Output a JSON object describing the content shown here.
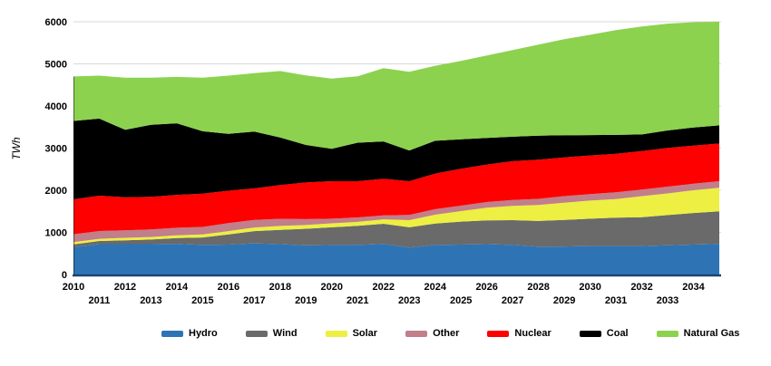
{
  "chart": {
    "background": "#FFFFFF",
    "gridline_color": "#D9D9D9",
    "axis_line_color": "#1B4470",
    "text_color": "#000000"
  },
  "chart_data": {
    "type": "area",
    "stacked": true,
    "title": "",
    "xlabel": "",
    "ylabel": "TWh",
    "ylim": [
      0,
      6000
    ],
    "grid": "horizontal",
    "legend_position": "bottom",
    "y_ticks": [
      "0",
      "1000",
      "2000",
      "3000",
      "4000",
      "5000",
      "6000"
    ],
    "x": [
      2010,
      2011,
      2012,
      2013,
      2014,
      2015,
      2016,
      2017,
      2018,
      2019,
      2020,
      2021,
      2022,
      2023,
      2024,
      2025,
      2026,
      2027,
      2028,
      2029,
      2030,
      2031,
      2032,
      2033,
      2034,
      2035
    ],
    "x_ticks_row1": [
      "2010",
      "2012",
      "2014",
      "2016",
      "2018",
      "2020",
      "2022",
      "2024",
      "2026",
      "2028",
      "2030",
      "2032",
      "2034"
    ],
    "x_ticks_row2": [
      "2011",
      "2013",
      "2015",
      "2017",
      "2019",
      "2021",
      "2023",
      "2025",
      "2027",
      "2029",
      "2031",
      "2033"
    ],
    "series": [
      {
        "name": "Hydro",
        "color": "#2E74B5",
        "values": [
          650,
          720,
          720,
          720,
          730,
          700,
          710,
          740,
          720,
          690,
          700,
          700,
          725,
          640,
          700,
          710,
          720,
          700,
          660,
          665,
          675,
          675,
          675,
          695,
          710,
          725
        ]
      },
      {
        "name": "Wind",
        "color": "#6A6A6A",
        "values": [
          65,
          75,
          90,
          110,
          135,
          180,
          240,
          290,
          340,
          395,
          420,
          455,
          480,
          480,
          510,
          545,
          565,
          590,
          610,
          630,
          650,
          675,
          685,
          715,
          750,
          775
        ]
      },
      {
        "name": "Solar",
        "color": "#EDEF42",
        "values": [
          55,
          52,
          60,
          60,
          65,
          70,
          80,
          86,
          93,
          90,
          95,
          95,
          105,
          170,
          210,
          250,
          300,
          340,
          380,
          410,
          430,
          440,
          500,
          515,
          540,
          560
        ]
      },
      {
        "name": "Other",
        "color": "#C17E8B",
        "values": [
          185,
          185,
          180,
          180,
          180,
          180,
          190,
          180,
          170,
          140,
          110,
          105,
          95,
          125,
          130,
          130,
          135,
          140,
          145,
          155,
          155,
          160,
          155,
          160,
          155,
          155
        ]
      },
      {
        "name": "Nuclear",
        "color": "#FE0000",
        "values": [
          830,
          840,
          785,
          775,
          780,
          790,
          770,
          750,
          800,
          870,
          890,
          860,
          865,
          800,
          845,
          875,
          890,
          920,
          930,
          920,
          915,
          915,
          915,
          920,
          905,
          895
        ]
      },
      {
        "name": "Coal",
        "color": "#000000",
        "values": [
          1860,
          1830,
          1600,
          1710,
          1700,
          1480,
          1350,
          1345,
          1130,
          890,
          770,
          915,
          890,
          730,
          780,
          700,
          630,
          580,
          570,
          525,
          485,
          450,
          395,
          415,
          430,
          430
        ]
      },
      {
        "name": "Natural Gas",
        "color": "#8CD24F",
        "values": [
          1055,
          1018,
          1235,
          1115,
          1100,
          1270,
          1380,
          1390,
          1577,
          1652,
          1666,
          1575,
          1740,
          1865,
          1780,
          1860,
          1960,
          2060,
          2160,
          2280,
          2380,
          2485,
          2560,
          2535,
          2500,
          2460
        ]
      }
    ]
  }
}
